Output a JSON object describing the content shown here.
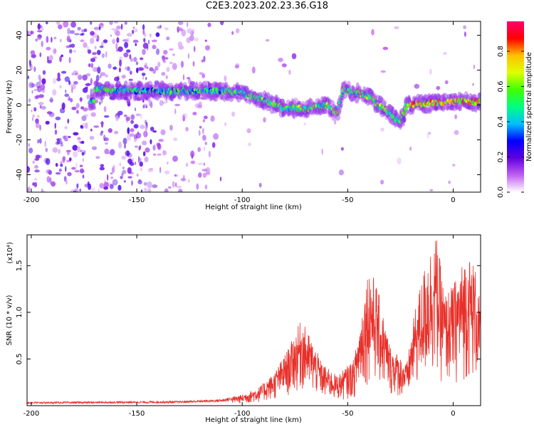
{
  "title": "C2E3.2023.202.23.36.G18",
  "chart_data": [
    {
      "type": "heatmap",
      "xlabel": "Height of straight line (km)",
      "ylabel": "Frequency (Hz)",
      "xlim": [
        -202,
        13
      ],
      "ylim": [
        -50,
        48
      ],
      "xticks": [
        -200,
        -150,
        -100,
        -50,
        0
      ],
      "yticks": [
        -40,
        -20,
        0,
        20,
        40
      ],
      "colorbar": {
        "label": "Normalized spectral amplitude",
        "range": [
          0,
          0.97
        ],
        "ticks": [
          "0.0",
          "0.2",
          "0.4",
          "0.6",
          "0.8"
        ],
        "tick_values": [
          0,
          0.2,
          0.4,
          0.6,
          0.8
        ],
        "colormap": [
          "#ffffff",
          "#c060f0",
          "#6000e0",
          "#0000ff",
          "#00c0ff",
          "#00ff80",
          "#40ff00",
          "#e0ff00",
          "#ffc000",
          "#ff0000",
          "#ff0070"
        ]
      },
      "ridge": [
        {
          "x": -170,
          "y": 9
        },
        {
          "x": -150,
          "y": 8
        },
        {
          "x": -130,
          "y": 8
        },
        {
          "x": -110,
          "y": 8
        },
        {
          "x": -100,
          "y": 7
        },
        {
          "x": -90,
          "y": 3
        },
        {
          "x": -80,
          "y": -2
        },
        {
          "x": -70,
          "y": -2
        },
        {
          "x": -60,
          "y": 0
        },
        {
          "x": -55,
          "y": -5
        },
        {
          "x": -52,
          "y": 9
        },
        {
          "x": -40,
          "y": 5
        },
        {
          "x": -30,
          "y": -5
        },
        {
          "x": -25,
          "y": -10
        },
        {
          "x": -22,
          "y": 0
        },
        {
          "x": -10,
          "y": 1
        },
        {
          "x": 0,
          "y": 2
        },
        {
          "x": 12,
          "y": 2
        }
      ]
    },
    {
      "type": "line",
      "xlabel": "Height of straight line (km)",
      "ylabel": "SNR (10 * v/v)",
      "y_multiplier": "(x10⁴)",
      "xlim": [
        -202,
        13
      ],
      "ylim": [
        0,
        1.83
      ],
      "xticks": [
        -200,
        -150,
        -100,
        -50,
        0
      ],
      "yticks": [
        0.5,
        1.0,
        1.5
      ],
      "ytick_labels": [
        "0.5",
        "1.0",
        "1.5"
      ],
      "series": [
        {
          "color": "#e8302a",
          "envelope": [
            {
              "x": -202,
              "y": 0.04
            },
            {
              "x": -130,
              "y": 0.05
            },
            {
              "x": -110,
              "y": 0.07
            },
            {
              "x": -100,
              "y": 0.12
            },
            {
              "x": -92,
              "y": 0.2
            },
            {
              "x": -85,
              "y": 0.35
            },
            {
              "x": -78,
              "y": 0.62
            },
            {
              "x": -72,
              "y": 0.93
            },
            {
              "x": -68,
              "y": 0.75
            },
            {
              "x": -62,
              "y": 0.45
            },
            {
              "x": -55,
              "y": 0.32
            },
            {
              "x": -47,
              "y": 0.5
            },
            {
              "x": -40,
              "y": 1.52
            },
            {
              "x": -36,
              "y": 1.28
            },
            {
              "x": -30,
              "y": 0.65
            },
            {
              "x": -22,
              "y": 0.45
            },
            {
              "x": -18,
              "y": 1.05
            },
            {
              "x": -12,
              "y": 1.65
            },
            {
              "x": -8,
              "y": 1.83
            },
            {
              "x": -4,
              "y": 1.2
            },
            {
              "x": 0,
              "y": 1.3
            },
            {
              "x": 6,
              "y": 1.62
            },
            {
              "x": 10,
              "y": 1.55
            },
            {
              "x": 13,
              "y": 1.08
            }
          ]
        }
      ]
    }
  ]
}
